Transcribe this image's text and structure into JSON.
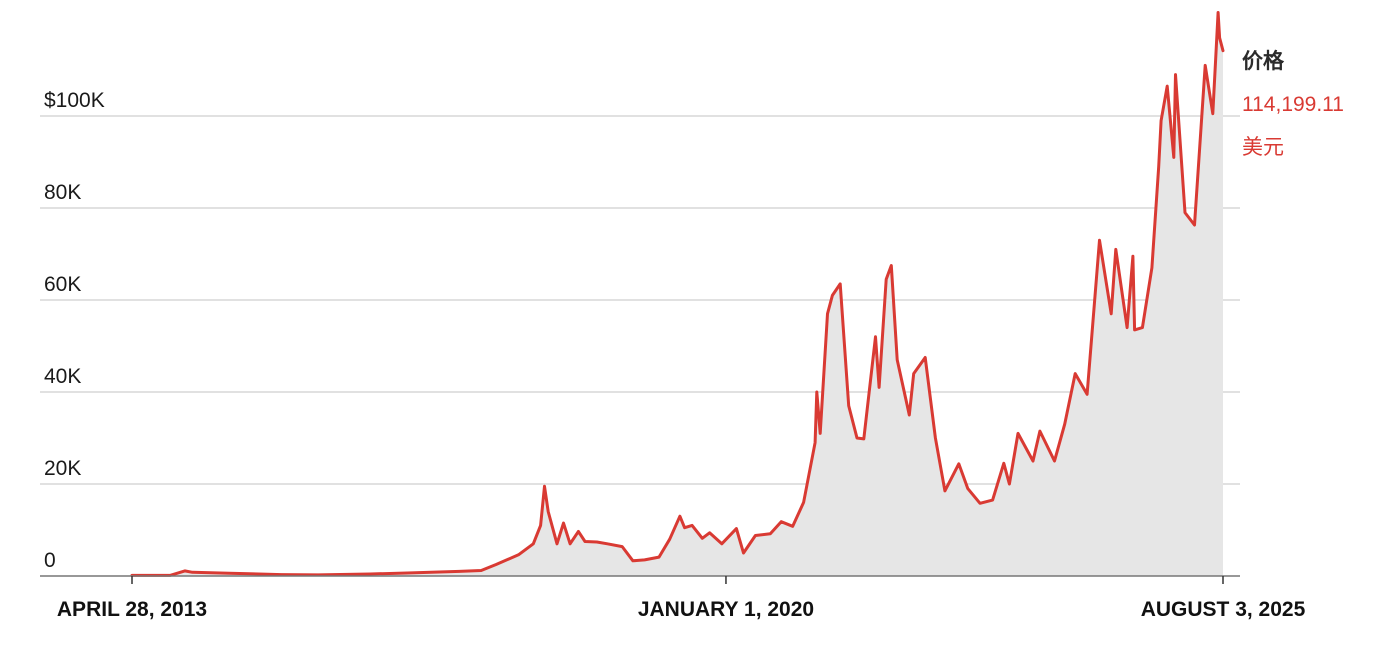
{
  "chart_data": {
    "type": "area",
    "x_axis": {
      "type": "date",
      "tick_labels": [
        {
          "date": "2013-04-28",
          "label": "APRIL 28, 2013"
        },
        {
          "date": "2020-01-01",
          "label": "JANUARY 1, 2020"
        },
        {
          "date": "2025-08-03",
          "label": "AUGUST 3, 2025"
        }
      ]
    },
    "y_axis": {
      "ylim": [
        0,
        120000
      ],
      "ticks": [
        {
          "value": 0,
          "label": "0"
        },
        {
          "value": 20000,
          "label": "20K"
        },
        {
          "value": 40000,
          "label": "40K"
        },
        {
          "value": 60000,
          "label": "60K"
        },
        {
          "value": 80000,
          "label": "80K"
        },
        {
          "value": 100000,
          "label": "$100K"
        }
      ]
    },
    "grid": "horizontal",
    "series": [
      {
        "color": "#d93a33",
        "fill": "#e6e6e6",
        "points": [
          [
            "2013-04-28",
            140
          ],
          [
            "2013-10-01",
            130
          ],
          [
            "2013-12-01",
            1100
          ],
          [
            "2014-01-01",
            800
          ],
          [
            "2014-06-01",
            600
          ],
          [
            "2015-01-01",
            300
          ],
          [
            "2015-06-01",
            240
          ],
          [
            "2016-01-01",
            430
          ],
          [
            "2016-06-01",
            650
          ],
          [
            "2017-01-01",
            1000
          ],
          [
            "2017-04-01",
            1200
          ],
          [
            "2017-06-01",
            2500
          ],
          [
            "2017-09-01",
            4600
          ],
          [
            "2017-11-01",
            7000
          ],
          [
            "2017-12-01",
            11000
          ],
          [
            "2017-12-17",
            19500
          ],
          [
            "2018-01-01",
            14000
          ],
          [
            "2018-02-06",
            7000
          ],
          [
            "2018-03-05",
            11500
          ],
          [
            "2018-04-01",
            7000
          ],
          [
            "2018-05-05",
            9700
          ],
          [
            "2018-06-01",
            7500
          ],
          [
            "2018-07-20",
            7400
          ],
          [
            "2018-09-01",
            7000
          ],
          [
            "2018-11-01",
            6400
          ],
          [
            "2018-12-15",
            3300
          ],
          [
            "2019-02-01",
            3500
          ],
          [
            "2019-04-01",
            4100
          ],
          [
            "2019-05-15",
            8000
          ],
          [
            "2019-06-26",
            13000
          ],
          [
            "2019-07-15",
            10500
          ],
          [
            "2019-08-15",
            11000
          ],
          [
            "2019-09-26",
            8200
          ],
          [
            "2019-10-26",
            9400
          ],
          [
            "2019-12-15",
            7000
          ],
          [
            "2020-02-13",
            10300
          ],
          [
            "2020-03-13",
            5000
          ],
          [
            "2020-05-01",
            8800
          ],
          [
            "2020-07-01",
            9200
          ],
          [
            "2020-08-15",
            11800
          ],
          [
            "2020-10-01",
            10800
          ],
          [
            "2020-11-15",
            16000
          ],
          [
            "2021-01-01",
            29000
          ],
          [
            "2021-01-08",
            40000
          ],
          [
            "2021-01-22",
            31000
          ],
          [
            "2021-02-21",
            57000
          ],
          [
            "2021-03-13",
            61000
          ],
          [
            "2021-04-14",
            63500
          ],
          [
            "2021-05-19",
            37000
          ],
          [
            "2021-06-22",
            30000
          ],
          [
            "2021-07-20",
            29800
          ],
          [
            "2021-09-06",
            52000
          ],
          [
            "2021-09-21",
            41000
          ],
          [
            "2021-10-20",
            64500
          ],
          [
            "2021-11-10",
            67500
          ],
          [
            "2021-12-04",
            47000
          ],
          [
            "2022-01-23",
            35000
          ],
          [
            "2022-02-10",
            44000
          ],
          [
            "2022-03-29",
            47500
          ],
          [
            "2022-05-10",
            30000
          ],
          [
            "2022-06-18",
            18500
          ],
          [
            "2022-08-14",
            24400
          ],
          [
            "2022-09-20",
            19000
          ],
          [
            "2022-11-09",
            15800
          ],
          [
            "2022-12-31",
            16500
          ],
          [
            "2023-02-15",
            24500
          ],
          [
            "2023-03-10",
            20000
          ],
          [
            "2023-04-14",
            31000
          ],
          [
            "2023-06-15",
            25000
          ],
          [
            "2023-07-13",
            31500
          ],
          [
            "2023-09-11",
            25000
          ],
          [
            "2023-10-23",
            33000
          ],
          [
            "2023-12-05",
            44000
          ],
          [
            "2024-01-23",
            39500
          ],
          [
            "2024-03-14",
            73000
          ],
          [
            "2024-05-01",
            57000
          ],
          [
            "2024-05-20",
            71000
          ],
          [
            "2024-07-05",
            54000
          ],
          [
            "2024-07-29",
            69500
          ],
          [
            "2024-08-05",
            53500
          ],
          [
            "2024-09-06",
            54000
          ],
          [
            "2024-10-15",
            67000
          ],
          [
            "2024-11-12",
            89000
          ],
          [
            "2024-11-22",
            99000
          ],
          [
            "2024-12-17",
            106500
          ],
          [
            "2025-01-13",
            91000
          ],
          [
            "2025-01-20",
            109000
          ],
          [
            "2025-02-28",
            79000
          ],
          [
            "2025-04-08",
            76300
          ],
          [
            "2025-05-22",
            111000
          ],
          [
            "2025-06-22",
            100500
          ],
          [
            "2025-07-14",
            122500
          ],
          [
            "2025-07-20",
            117000
          ],
          [
            "2025-08-03",
            114199
          ]
        ]
      }
    ],
    "annotation": {
      "title": "价格",
      "value": "114,199.11",
      "unit": "美元"
    }
  }
}
